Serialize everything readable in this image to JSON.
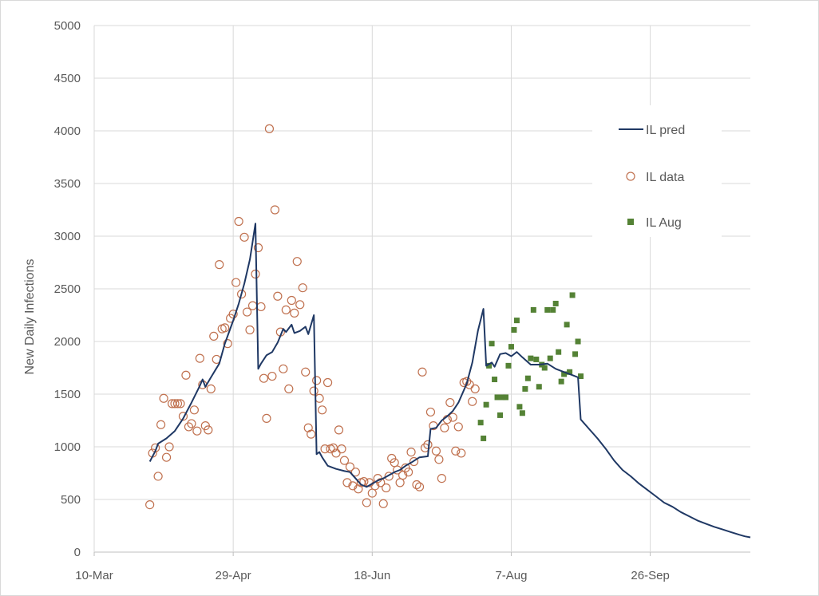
{
  "chart_data": {
    "type": "line",
    "title": "",
    "ylabel": "New Daily Infections",
    "xlabel": "",
    "x_ticks": [
      "10-Mar",
      "29-Apr",
      "18-Jun",
      "7-Aug",
      "26-Sep"
    ],
    "y_ticks": [
      0,
      500,
      1000,
      1500,
      2000,
      2500,
      3000,
      3500,
      4000,
      4500,
      5000
    ],
    "xlim": [
      "2020-03-10",
      "2020-11-01"
    ],
    "ylim": [
      0,
      5000
    ],
    "grid": true,
    "legend_position": "right",
    "colors": {
      "pred": "#1f3864",
      "data": "#c0714f",
      "aug": "#548235",
      "grid": "#d9d9d9",
      "axis": "#bfbfbf"
    },
    "series": [
      {
        "name": "IL pred",
        "type": "line",
        "points": [
          [
            "2020-03-30",
            860
          ],
          [
            "2020-04-01",
            960
          ],
          [
            "2020-04-02",
            1030
          ],
          [
            "2020-04-05",
            1080
          ],
          [
            "2020-04-08",
            1150
          ],
          [
            "2020-04-11",
            1270
          ],
          [
            "2020-04-14",
            1420
          ],
          [
            "2020-04-17",
            1580
          ],
          [
            "2020-04-18",
            1640
          ],
          [
            "2020-04-19",
            1570
          ],
          [
            "2020-04-21",
            1660
          ],
          [
            "2020-04-24",
            1790
          ],
          [
            "2020-04-26",
            1980
          ],
          [
            "2020-04-29",
            2200
          ],
          [
            "2020-05-01",
            2360
          ],
          [
            "2020-05-03",
            2550
          ],
          [
            "2020-05-05",
            2780
          ],
          [
            "2020-05-07",
            3120
          ],
          [
            "2020-05-08",
            1740
          ],
          [
            "2020-05-09",
            1790
          ],
          [
            "2020-05-11",
            1870
          ],
          [
            "2020-05-13",
            1900
          ],
          [
            "2020-05-15",
            1990
          ],
          [
            "2020-05-17",
            2120
          ],
          [
            "2020-05-18",
            2090
          ],
          [
            "2020-05-20",
            2160
          ],
          [
            "2020-05-21",
            2080
          ],
          [
            "2020-05-23",
            2100
          ],
          [
            "2020-05-25",
            2140
          ],
          [
            "2020-05-26",
            2070
          ],
          [
            "2020-05-28",
            2250
          ],
          [
            "2020-05-29",
            930
          ],
          [
            "2020-05-30",
            950
          ],
          [
            "2020-05-31",
            900
          ],
          [
            "2020-06-02",
            820
          ],
          [
            "2020-06-05",
            790
          ],
          [
            "2020-06-08",
            770
          ],
          [
            "2020-06-10",
            760
          ],
          [
            "2020-06-12",
            700
          ],
          [
            "2020-06-14",
            640
          ],
          [
            "2020-06-16",
            620
          ],
          [
            "2020-06-18",
            650
          ],
          [
            "2020-06-20",
            680
          ],
          [
            "2020-06-22",
            700
          ],
          [
            "2020-06-24",
            730
          ],
          [
            "2020-06-26",
            760
          ],
          [
            "2020-06-28",
            780
          ],
          [
            "2020-06-30",
            820
          ],
          [
            "2020-07-02",
            850
          ],
          [
            "2020-07-05",
            900
          ],
          [
            "2020-07-08",
            910
          ],
          [
            "2020-07-09",
            1170
          ],
          [
            "2020-07-11",
            1180
          ],
          [
            "2020-07-13",
            1250
          ],
          [
            "2020-07-15",
            1290
          ],
          [
            "2020-07-17",
            1340
          ],
          [
            "2020-07-19",
            1420
          ],
          [
            "2020-07-22",
            1600
          ],
          [
            "2020-07-24",
            1800
          ],
          [
            "2020-07-26",
            2100
          ],
          [
            "2020-07-28",
            2310
          ],
          [
            "2020-07-29",
            1770
          ],
          [
            "2020-07-31",
            1800
          ],
          [
            "2020-08-01",
            1760
          ],
          [
            "2020-08-03",
            1880
          ],
          [
            "2020-08-05",
            1890
          ],
          [
            "2020-08-07",
            1860
          ],
          [
            "2020-08-09",
            1900
          ],
          [
            "2020-08-11",
            1850
          ],
          [
            "2020-08-14",
            1780
          ],
          [
            "2020-08-17",
            1780
          ],
          [
            "2020-08-20",
            1790
          ],
          [
            "2020-08-23",
            1740
          ],
          [
            "2020-08-26",
            1710
          ],
          [
            "2020-08-29",
            1680
          ],
          [
            "2020-08-31",
            1660
          ],
          [
            "2020-09-01",
            1260
          ],
          [
            "2020-09-04",
            1170
          ],
          [
            "2020-09-07",
            1080
          ],
          [
            "2020-09-10",
            980
          ],
          [
            "2020-09-13",
            870
          ],
          [
            "2020-09-16",
            780
          ],
          [
            "2020-09-19",
            720
          ],
          [
            "2020-09-22",
            650
          ],
          [
            "2020-09-25",
            590
          ],
          [
            "2020-09-28",
            530
          ],
          [
            "2020-10-01",
            470
          ],
          [
            "2020-10-04",
            430
          ],
          [
            "2020-10-07",
            380
          ],
          [
            "2020-10-10",
            340
          ],
          [
            "2020-10-13",
            300
          ],
          [
            "2020-10-16",
            270
          ],
          [
            "2020-10-19",
            240
          ],
          [
            "2020-10-22",
            215
          ],
          [
            "2020-10-25",
            190
          ],
          [
            "2020-10-28",
            165
          ],
          [
            "2020-10-30",
            150
          ],
          [
            "2020-11-01",
            140
          ]
        ]
      },
      {
        "name": "IL data",
        "type": "scatter",
        "marker": "open-circle",
        "points": [
          [
            "2020-03-30",
            450
          ],
          [
            "2020-03-31",
            940
          ],
          [
            "2020-04-01",
            990
          ],
          [
            "2020-04-02",
            720
          ],
          [
            "2020-04-03",
            1210
          ],
          [
            "2020-04-04",
            1460
          ],
          [
            "2020-04-05",
            900
          ],
          [
            "2020-04-06",
            1000
          ],
          [
            "2020-04-07",
            1410
          ],
          [
            "2020-04-08",
            1410
          ],
          [
            "2020-04-09",
            1410
          ],
          [
            "2020-04-10",
            1410
          ],
          [
            "2020-04-11",
            1290
          ],
          [
            "2020-04-12",
            1680
          ],
          [
            "2020-04-13",
            1190
          ],
          [
            "2020-04-14",
            1220
          ],
          [
            "2020-04-15",
            1350
          ],
          [
            "2020-04-16",
            1150
          ],
          [
            "2020-04-17",
            1840
          ],
          [
            "2020-04-18",
            1590
          ],
          [
            "2020-04-19",
            1200
          ],
          [
            "2020-04-20",
            1160
          ],
          [
            "2020-04-21",
            1550
          ],
          [
            "2020-04-22",
            2050
          ],
          [
            "2020-04-23",
            1830
          ],
          [
            "2020-04-24",
            2730
          ],
          [
            "2020-04-25",
            2120
          ],
          [
            "2020-04-26",
            2130
          ],
          [
            "2020-04-27",
            1980
          ],
          [
            "2020-04-28",
            2220
          ],
          [
            "2020-04-29",
            2260
          ],
          [
            "2020-04-30",
            2560
          ],
          [
            "2020-05-01",
            3140
          ],
          [
            "2020-05-02",
            2450
          ],
          [
            "2020-05-03",
            2990
          ],
          [
            "2020-05-04",
            2280
          ],
          [
            "2020-05-05",
            2110
          ],
          [
            "2020-05-06",
            2340
          ],
          [
            "2020-05-07",
            2640
          ],
          [
            "2020-05-08",
            2890
          ],
          [
            "2020-05-09",
            2330
          ],
          [
            "2020-05-10",
            1650
          ],
          [
            "2020-05-11",
            1270
          ],
          [
            "2020-05-12",
            4020
          ],
          [
            "2020-05-13",
            1670
          ],
          [
            "2020-05-14",
            3250
          ],
          [
            "2020-05-15",
            2430
          ],
          [
            "2020-05-16",
            2090
          ],
          [
            "2020-05-17",
            1740
          ],
          [
            "2020-05-18",
            2300
          ],
          [
            "2020-05-19",
            1550
          ],
          [
            "2020-05-20",
            2390
          ],
          [
            "2020-05-21",
            2270
          ],
          [
            "2020-05-22",
            2760
          ],
          [
            "2020-05-23",
            2350
          ],
          [
            "2020-05-24",
            2510
          ],
          [
            "2020-05-25",
            1710
          ],
          [
            "2020-05-26",
            1180
          ],
          [
            "2020-05-27",
            1120
          ],
          [
            "2020-05-28",
            1530
          ],
          [
            "2020-05-29",
            1630
          ],
          [
            "2020-05-30",
            1460
          ],
          [
            "2020-05-31",
            1350
          ],
          [
            "2020-06-01",
            980
          ],
          [
            "2020-06-02",
            1610
          ],
          [
            "2020-06-03",
            980
          ],
          [
            "2020-06-04",
            990
          ],
          [
            "2020-06-05",
            940
          ],
          [
            "2020-06-06",
            1160
          ],
          [
            "2020-06-07",
            980
          ],
          [
            "2020-06-08",
            870
          ],
          [
            "2020-06-09",
            660
          ],
          [
            "2020-06-10",
            810
          ],
          [
            "2020-06-11",
            630
          ],
          [
            "2020-06-12",
            760
          ],
          [
            "2020-06-13",
            600
          ],
          [
            "2020-06-14",
            660
          ],
          [
            "2020-06-15",
            670
          ],
          [
            "2020-06-16",
            470
          ],
          [
            "2020-06-17",
            660
          ],
          [
            "2020-06-18",
            560
          ],
          [
            "2020-06-19",
            630
          ],
          [
            "2020-06-20",
            700
          ],
          [
            "2020-06-21",
            660
          ],
          [
            "2020-06-22",
            460
          ],
          [
            "2020-06-23",
            610
          ],
          [
            "2020-06-24",
            720
          ],
          [
            "2020-06-25",
            890
          ],
          [
            "2020-06-26",
            850
          ],
          [
            "2020-06-27",
            780
          ],
          [
            "2020-06-28",
            660
          ],
          [
            "2020-06-29",
            730
          ],
          [
            "2020-06-30",
            800
          ],
          [
            "2020-07-01",
            760
          ],
          [
            "2020-07-02",
            950
          ],
          [
            "2020-07-03",
            860
          ],
          [
            "2020-07-04",
            640
          ],
          [
            "2020-07-05",
            620
          ],
          [
            "2020-07-06",
            1710
          ],
          [
            "2020-07-07",
            990
          ],
          [
            "2020-07-08",
            1020
          ],
          [
            "2020-07-09",
            1330
          ],
          [
            "2020-07-10",
            1200
          ],
          [
            "2020-07-11",
            960
          ],
          [
            "2020-07-12",
            880
          ],
          [
            "2020-07-13",
            700
          ],
          [
            "2020-07-14",
            1180
          ],
          [
            "2020-07-15",
            1260
          ],
          [
            "2020-07-16",
            1420
          ],
          [
            "2020-07-17",
            1280
          ],
          [
            "2020-07-18",
            960
          ],
          [
            "2020-07-19",
            1190
          ],
          [
            "2020-07-20",
            940
          ],
          [
            "2020-07-21",
            1610
          ],
          [
            "2020-07-22",
            1620
          ],
          [
            "2020-07-23",
            1590
          ],
          [
            "2020-07-24",
            1430
          ],
          [
            "2020-07-25",
            1550
          ]
        ]
      },
      {
        "name": "IL Aug",
        "type": "scatter",
        "marker": "filled-square",
        "points": [
          [
            "2020-07-27",
            1230
          ],
          [
            "2020-07-28",
            1080
          ],
          [
            "2020-07-29",
            1400
          ],
          [
            "2020-07-30",
            1770
          ],
          [
            "2020-07-31",
            1980
          ],
          [
            "2020-08-01",
            1640
          ],
          [
            "2020-08-02",
            1470
          ],
          [
            "2020-08-03",
            1300
          ],
          [
            "2020-08-04",
            1470
          ],
          [
            "2020-08-05",
            1470
          ],
          [
            "2020-08-06",
            1770
          ],
          [
            "2020-08-07",
            1950
          ],
          [
            "2020-08-08",
            2110
          ],
          [
            "2020-08-09",
            2200
          ],
          [
            "2020-08-10",
            1380
          ],
          [
            "2020-08-11",
            1320
          ],
          [
            "2020-08-12",
            1550
          ],
          [
            "2020-08-13",
            1650
          ],
          [
            "2020-08-14",
            1840
          ],
          [
            "2020-08-15",
            2300
          ],
          [
            "2020-08-16",
            1830
          ],
          [
            "2020-08-17",
            1570
          ],
          [
            "2020-08-18",
            1780
          ],
          [
            "2020-08-19",
            1750
          ],
          [
            "2020-08-20",
            2300
          ],
          [
            "2020-08-21",
            1840
          ],
          [
            "2020-08-22",
            2300
          ],
          [
            "2020-08-23",
            2360
          ],
          [
            "2020-08-24",
            1900
          ],
          [
            "2020-08-25",
            1620
          ],
          [
            "2020-08-26",
            1690
          ],
          [
            "2020-08-27",
            2160
          ],
          [
            "2020-08-28",
            1710
          ],
          [
            "2020-08-29",
            2440
          ],
          [
            "2020-08-30",
            1880
          ],
          [
            "2020-08-31",
            2000
          ],
          [
            "2020-09-01",
            1670
          ]
        ]
      }
    ]
  }
}
